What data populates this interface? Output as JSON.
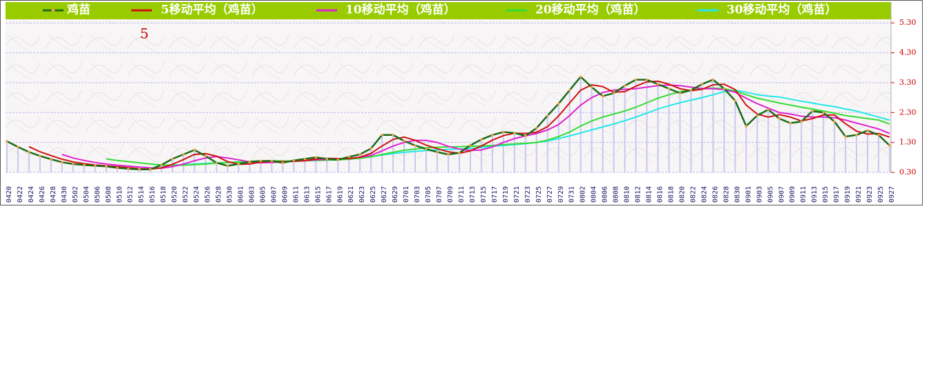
{
  "chart_data": {
    "type": "line",
    "annotation": "5",
    "categories": [
      "0420",
      "0422",
      "0424",
      "0426",
      "0428",
      "0430",
      "0502",
      "0504",
      "0506",
      "0508",
      "0510",
      "0512",
      "0514",
      "0516",
      "0518",
      "0520",
      "0522",
      "0524",
      "0526",
      "0528",
      "0530",
      "0601",
      "0603",
      "0605",
      "0607",
      "0609",
      "0611",
      "0613",
      "0615",
      "0617",
      "0619",
      "0621",
      "0623",
      "0625",
      "0627",
      "0629",
      "0701",
      "0703",
      "0705",
      "0707",
      "0709",
      "0711",
      "0713",
      "0715",
      "0717",
      "0719",
      "0721",
      "0723",
      "0725",
      "0727",
      "0729",
      "0731",
      "0802",
      "0804",
      "0806",
      "0808",
      "0810",
      "0812",
      "0814",
      "0816",
      "0818",
      "0820",
      "0822",
      "0824",
      "0826",
      "0828",
      "0830",
      "0901",
      "0903",
      "0905",
      "0907",
      "0909",
      "0911",
      "0913",
      "0915",
      "0917",
      "0919",
      "0921",
      "0923",
      "0925",
      "0927"
    ],
    "series": [
      {
        "name": "鸡苗",
        "color": "#1a6b1a",
        "values": [
          1.34,
          1.15,
          0.98,
          0.85,
          0.74,
          0.64,
          0.58,
          0.55,
          0.52,
          0.5,
          0.45,
          0.42,
          0.4,
          0.4,
          0.55,
          0.75,
          0.9,
          1.05,
          0.85,
          0.62,
          0.52,
          0.58,
          0.65,
          0.68,
          0.68,
          0.62,
          0.7,
          0.75,
          0.8,
          0.75,
          0.72,
          0.82,
          0.9,
          1.1,
          1.55,
          1.55,
          1.35,
          1.2,
          1.08,
          0.98,
          0.9,
          0.95,
          1.2,
          1.4,
          1.55,
          1.65,
          1.62,
          1.52,
          1.78,
          2.2,
          2.6,
          3.05,
          3.5,
          3.15,
          2.85,
          2.95,
          3.2,
          3.4,
          3.4,
          3.25,
          3.1,
          2.95,
          3.05,
          3.25,
          3.4,
          3.1,
          2.7,
          1.85,
          2.2,
          2.4,
          2.1,
          1.95,
          2.0,
          2.35,
          2.3,
          2.0,
          1.5,
          1.55,
          1.7,
          1.55,
          1.2
        ]
      },
      {
        "name": "5移动平均（鸡苗）",
        "color": "#d01010",
        "values": [
          null,
          null,
          1.16,
          0.99,
          0.86,
          0.74,
          0.65,
          0.59,
          0.55,
          0.52,
          0.49,
          0.46,
          0.42,
          0.41,
          0.45,
          0.57,
          0.73,
          0.9,
          0.93,
          0.84,
          0.66,
          0.57,
          0.58,
          0.64,
          0.67,
          0.66,
          0.67,
          0.69,
          0.75,
          0.77,
          0.76,
          0.76,
          0.81,
          0.94,
          1.18,
          1.4,
          1.48,
          1.37,
          1.21,
          1.09,
          0.99,
          0.94,
          1.02,
          1.18,
          1.38,
          1.53,
          1.61,
          1.6,
          1.64,
          1.83,
          2.19,
          2.62,
          3.05,
          3.23,
          3.17,
          2.98,
          3.0,
          3.18,
          3.33,
          3.35,
          3.25,
          3.1,
          3.03,
          3.08,
          3.23,
          3.25,
          3.07,
          2.55,
          2.25,
          2.15,
          2.23,
          2.15,
          2.02,
          2.1,
          2.22,
          2.22,
          1.93,
          1.68,
          1.58,
          1.6,
          1.48
        ]
      },
      {
        "name": "10移动平均（鸡苗）",
        "color": "#e020d0",
        "values": [
          null,
          null,
          null,
          null,
          null,
          0.9,
          0.78,
          0.7,
          0.63,
          0.58,
          0.54,
          0.51,
          0.48,
          0.45,
          0.44,
          0.49,
          0.58,
          0.69,
          0.78,
          0.83,
          0.78,
          0.72,
          0.65,
          0.62,
          0.63,
          0.65,
          0.67,
          0.69,
          0.72,
          0.73,
          0.75,
          0.77,
          0.8,
          0.87,
          1.02,
          1.18,
          1.3,
          1.37,
          1.37,
          1.3,
          1.17,
          1.08,
          1.03,
          1.05,
          1.15,
          1.3,
          1.43,
          1.52,
          1.6,
          1.72,
          1.9,
          2.2,
          2.55,
          2.8,
          2.97,
          3.05,
          3.08,
          3.1,
          3.15,
          3.2,
          3.22,
          3.2,
          3.15,
          3.1,
          3.1,
          3.07,
          2.98,
          2.78,
          2.6,
          2.45,
          2.3,
          2.25,
          2.18,
          2.15,
          2.15,
          2.13,
          2.05,
          1.95,
          1.85,
          1.75,
          1.6
        ]
      },
      {
        "name": "20移动平均（鸡苗）",
        "color": "#33dd33",
        "values": [
          null,
          null,
          null,
          null,
          null,
          null,
          null,
          null,
          null,
          0.75,
          0.7,
          0.66,
          0.62,
          0.58,
          0.55,
          0.54,
          0.54,
          0.56,
          0.58,
          0.61,
          0.63,
          0.65,
          0.67,
          0.68,
          0.69,
          0.68,
          0.68,
          0.69,
          0.7,
          0.71,
          0.72,
          0.74,
          0.77,
          0.82,
          0.9,
          0.97,
          1.04,
          1.08,
          1.12,
          1.14,
          1.15,
          1.16,
          1.17,
          1.18,
          1.2,
          1.23,
          1.25,
          1.27,
          1.3,
          1.38,
          1.5,
          1.65,
          1.85,
          2.02,
          2.15,
          2.25,
          2.35,
          2.48,
          2.63,
          2.78,
          2.9,
          3.0,
          3.05,
          3.1,
          3.12,
          3.1,
          3.02,
          2.9,
          2.78,
          2.7,
          2.62,
          2.55,
          2.48,
          2.42,
          2.35,
          2.28,
          2.2,
          2.15,
          2.1,
          2.05,
          1.92
        ]
      },
      {
        "name": "30移动平均（鸡苗）",
        "color": "#22e8e8",
        "values": [
          null,
          null,
          null,
          null,
          null,
          null,
          null,
          null,
          null,
          null,
          null,
          null,
          null,
          null,
          0.52,
          0.54,
          0.56,
          0.58,
          0.6,
          0.62,
          0.63,
          0.64,
          0.65,
          0.66,
          0.67,
          0.67,
          0.68,
          0.69,
          0.7,
          0.71,
          0.72,
          0.74,
          0.78,
          0.83,
          0.88,
          0.93,
          0.97,
          1.0,
          1.03,
          1.05,
          1.07,
          1.08,
          1.1,
          1.13,
          1.17,
          1.2,
          1.23,
          1.26,
          1.3,
          1.35,
          1.43,
          1.52,
          1.62,
          1.72,
          1.82,
          1.92,
          2.03,
          2.15,
          2.28,
          2.42,
          2.53,
          2.63,
          2.72,
          2.8,
          2.9,
          3.0,
          3.05,
          2.98,
          2.9,
          2.85,
          2.82,
          2.75,
          2.68,
          2.62,
          2.55,
          2.5,
          2.42,
          2.35,
          2.25,
          2.15,
          2.05
        ]
      }
    ],
    "ylim": [
      0.3,
      5.42
    ],
    "yticks": [
      {
        "value": 0.3,
        "label": "0.30"
      },
      {
        "value": 1.3,
        "label": "1.30"
      },
      {
        "value": 2.3,
        "label": "2.30"
      },
      {
        "value": 3.3,
        "label": "3.30"
      },
      {
        "value": 4.3,
        "label": "4.30"
      },
      {
        "value": 5.3,
        "label": "5.30"
      }
    ],
    "grid": true,
    "bar_color": "#c8c8f0"
  }
}
